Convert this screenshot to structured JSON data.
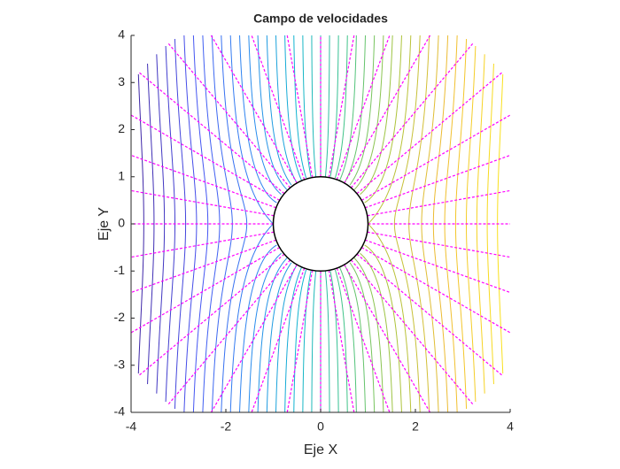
{
  "chart_data": {
    "type": "contour",
    "title": "Campo de velocidades",
    "xlabel": "Eje X",
    "ylabel": "Eje Y",
    "xlim": [
      -4,
      4
    ],
    "ylim": [
      -4,
      4
    ],
    "xticks": [
      -4,
      -2,
      0,
      2,
      4
    ],
    "yticks": [
      -4,
      -3,
      -2,
      -1,
      0,
      1,
      2,
      3,
      4
    ],
    "inner_radius": 1,
    "outer_radius": 5,
    "levels": [
      -4,
      -3.8,
      -3.6,
      -3.4,
      -3.2,
      -3,
      -2.8,
      -2.6,
      -2.4,
      -2.2,
      -2,
      -1.8,
      -1.6,
      -1.4,
      -1.2,
      -1,
      -0.8,
      -0.6,
      -0.4,
      -0.2,
      0,
      0.2,
      0.4,
      0.6,
      0.8,
      1,
      1.2,
      1.4,
      1.6,
      1.8,
      2,
      2.2,
      2.4,
      2.6,
      2.8,
      3,
      3.2,
      3.4,
      3.6,
      3.8,
      4
    ],
    "colormap": [
      "#3e26a8",
      "#4653f2",
      "#2c87f0",
      "#10b4cf",
      "#3dc38a",
      "#a8c43b",
      "#f0bb32",
      "#f9e01c"
    ],
    "ray_angles": [
      0,
      10,
      20,
      30,
      40,
      50,
      60,
      70,
      80,
      90,
      100,
      110,
      120,
      130,
      140,
      150,
      160,
      170,
      180,
      190,
      200,
      210,
      220,
      230,
      240,
      250,
      260,
      270,
      280,
      290,
      300,
      310,
      320,
      330,
      340,
      350
    ],
    "ray_color": "#ff00ff",
    "circle_color": "#000000"
  }
}
